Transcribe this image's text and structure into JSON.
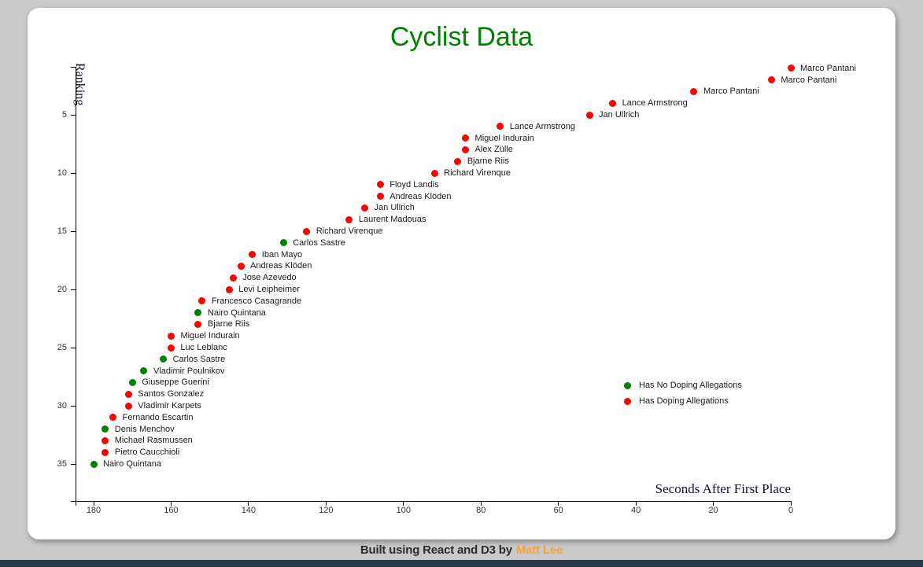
{
  "page": {
    "background": "#c9c9c9",
    "footer": {
      "text": "Built using React and D3 by",
      "link": "Matt Lee",
      "link_color": "#f7a531",
      "bar_color": "#2c3a47"
    }
  },
  "chart_data": {
    "type": "scatter",
    "title": "Cyclist Data",
    "title_color": "#008000",
    "xlabel": "Seconds After First Place",
    "ylabel": "Ranking",
    "x_domain": [
      180,
      0
    ],
    "x_ticks": [
      180,
      160,
      140,
      120,
      100,
      80,
      60,
      40,
      20,
      0
    ],
    "y_ticks": [
      5,
      10,
      15,
      20,
      25,
      30,
      35
    ],
    "grid": false,
    "legend_position": "right-middle",
    "colors": {
      "doping": "#ff0000",
      "clean": "#008000"
    },
    "legend": [
      {
        "label": "Has No Doping Allegations",
        "doping": false
      },
      {
        "label": "Has Doping Allegations",
        "doping": true
      }
    ],
    "points": [
      {
        "ranking": 1,
        "name": "Marco Pantani",
        "seconds": 0,
        "doping": true
      },
      {
        "ranking": 2,
        "name": "Marco Pantani",
        "seconds": 5,
        "doping": true
      },
      {
        "ranking": 3,
        "name": "Marco Pantani",
        "seconds": 25,
        "doping": true
      },
      {
        "ranking": 4,
        "name": "Lance Armstrong",
        "seconds": 46,
        "doping": true
      },
      {
        "ranking": 5,
        "name": "Jan Ullrich",
        "seconds": 52,
        "doping": true
      },
      {
        "ranking": 6,
        "name": "Lance Armstrong",
        "seconds": 75,
        "doping": true
      },
      {
        "ranking": 7,
        "name": "Miguel Indurain",
        "seconds": 84,
        "doping": true
      },
      {
        "ranking": 8,
        "name": "Alex Zülle",
        "seconds": 84,
        "doping": true
      },
      {
        "ranking": 9,
        "name": "Bjarne Riis",
        "seconds": 86,
        "doping": true
      },
      {
        "ranking": 10,
        "name": "Richard Virenque",
        "seconds": 92,
        "doping": true
      },
      {
        "ranking": 11,
        "name": "Floyd Landis",
        "seconds": 106,
        "doping": true
      },
      {
        "ranking": 12,
        "name": "Andreas Klöden",
        "seconds": 106,
        "doping": true
      },
      {
        "ranking": 13,
        "name": "Jan Ullrich",
        "seconds": 110,
        "doping": true
      },
      {
        "ranking": 14,
        "name": "Laurent Madouas",
        "seconds": 114,
        "doping": true
      },
      {
        "ranking": 15,
        "name": "Richard Virenque",
        "seconds": 125,
        "doping": true
      },
      {
        "ranking": 16,
        "name": "Carlos Sastre",
        "seconds": 131,
        "doping": false
      },
      {
        "ranking": 17,
        "name": "Iban Mayo",
        "seconds": 139,
        "doping": true
      },
      {
        "ranking": 18,
        "name": "Andreas Klöden",
        "seconds": 142,
        "doping": true
      },
      {
        "ranking": 19,
        "name": "Jose Azevedo",
        "seconds": 144,
        "doping": true
      },
      {
        "ranking": 20,
        "name": "Levi Leipheimer",
        "seconds": 145,
        "doping": true
      },
      {
        "ranking": 21,
        "name": "Francesco Casagrande",
        "seconds": 152,
        "doping": true
      },
      {
        "ranking": 22,
        "name": "Nairo Quintana",
        "seconds": 153,
        "doping": false
      },
      {
        "ranking": 23,
        "name": "Bjarne Riis",
        "seconds": 153,
        "doping": true
      },
      {
        "ranking": 24,
        "name": "Miguel Indurain",
        "seconds": 160,
        "doping": true
      },
      {
        "ranking": 25,
        "name": "Luc Leblanc",
        "seconds": 160,
        "doping": true
      },
      {
        "ranking": 26,
        "name": "Carlos Sastre",
        "seconds": 162,
        "doping": false
      },
      {
        "ranking": 27,
        "name": "Vladimir Poulnikov",
        "seconds": 167,
        "doping": false
      },
      {
        "ranking": 28,
        "name": "Giuseppe Guerini",
        "seconds": 170,
        "doping": false
      },
      {
        "ranking": 29,
        "name": "Santos Gonzalez",
        "seconds": 171,
        "doping": true
      },
      {
        "ranking": 30,
        "name": "Vladimir Karpets",
        "seconds": 171,
        "doping": true
      },
      {
        "ranking": 31,
        "name": "Fernando Escartin",
        "seconds": 175,
        "doping": true
      },
      {
        "ranking": 32,
        "name": "Denis Menchov",
        "seconds": 177,
        "doping": false
      },
      {
        "ranking": 33,
        "name": "Michael Rasmussen",
        "seconds": 177,
        "doping": true
      },
      {
        "ranking": 34,
        "name": "Pietro Caucchioli",
        "seconds": 177,
        "doping": true
      },
      {
        "ranking": 35,
        "name": "Nairo Quintana",
        "seconds": 180,
        "doping": false
      }
    ]
  }
}
